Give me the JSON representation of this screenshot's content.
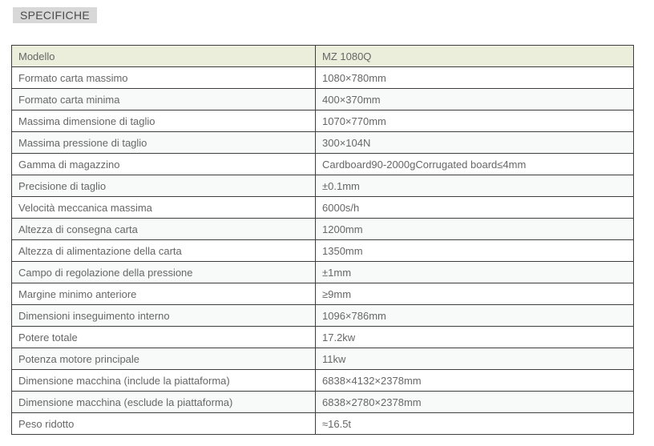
{
  "page": {
    "section_title": "SPECIFICHE"
  },
  "colors": {
    "section_label_bg": "#d8d8d8",
    "table_header_bg": "#ebeeda",
    "alt_row_bg": "#f8fafa",
    "border": "#3e3e3e",
    "text": "#666666"
  },
  "table": {
    "header": {
      "label": "Modello",
      "value": "MZ 1080Q"
    },
    "rows": [
      {
        "label": "Formato carta massimo",
        "value": "1080×780mm"
      },
      {
        "label": "Formato carta minima",
        "value": "400×370mm"
      },
      {
        "label": "Massima dimensione di taglio",
        "value": "1070×770mm"
      },
      {
        "label": "Massima pressione di taglio",
        "value": "300×104N"
      },
      {
        "label": "Gamma di magazzino",
        "value": "Cardboard90-2000gCorrugated board≤4mm"
      },
      {
        "label": "Precisione di taglio",
        "value": "±0.1mm"
      },
      {
        "label": "Velocità meccanica massima",
        "value": "6000s/h"
      },
      {
        "label": "Altezza di consegna carta",
        "value": "1200mm"
      },
      {
        "label": "Altezza di alimentazione della carta",
        "value": "1350mm"
      },
      {
        "label": "Campo di regolazione della pressione",
        "value": "±1mm"
      },
      {
        "label": "Margine minimo anteriore",
        "value": "≥9mm"
      },
      {
        "label": "Dimensioni inseguimento interno",
        "value": "1096×786mm"
      },
      {
        "label": "Potere totale",
        "value": "17.2kw"
      },
      {
        "label": "Potenza motore principale",
        "value": "11kw"
      },
      {
        "label": "Dimensione macchina (include la piattaforma)",
        "value": "6838×4132×2378mm"
      },
      {
        "label": "Dimensione macchina (esclude la piattaforma)",
        "value": "6838×2780×2378mm"
      },
      {
        "label": "Peso ridotto",
        "value": "≈16.5t"
      }
    ]
  }
}
